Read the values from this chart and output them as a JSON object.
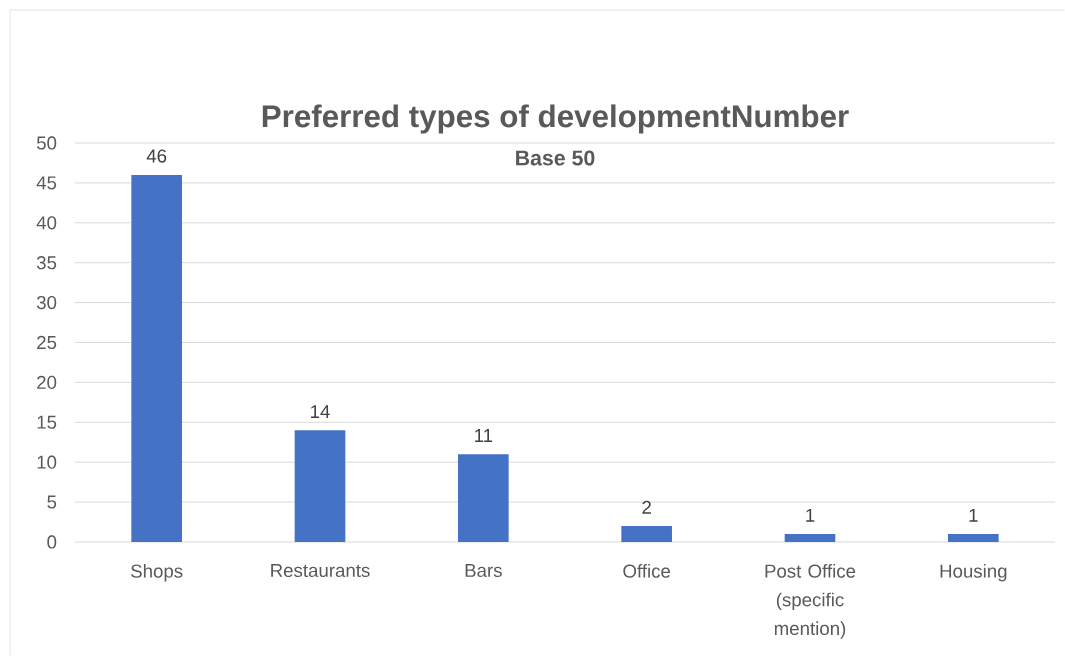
{
  "chart_data": {
    "type": "bar",
    "title": "Preferred types of developmentNumber",
    "subtitle": "Base 50",
    "categories": [
      "Shops",
      "Restaurants",
      "Bars",
      "Office",
      "Post Office (specific mention)",
      "Housing"
    ],
    "values": [
      46,
      14,
      11,
      2,
      1,
      1
    ],
    "color": "#4472c4",
    "ylim": [
      0,
      50
    ],
    "yticks": [
      0,
      5,
      10,
      15,
      20,
      25,
      30,
      35,
      40,
      45,
      50
    ],
    "grid": "y",
    "data_labels": true
  }
}
